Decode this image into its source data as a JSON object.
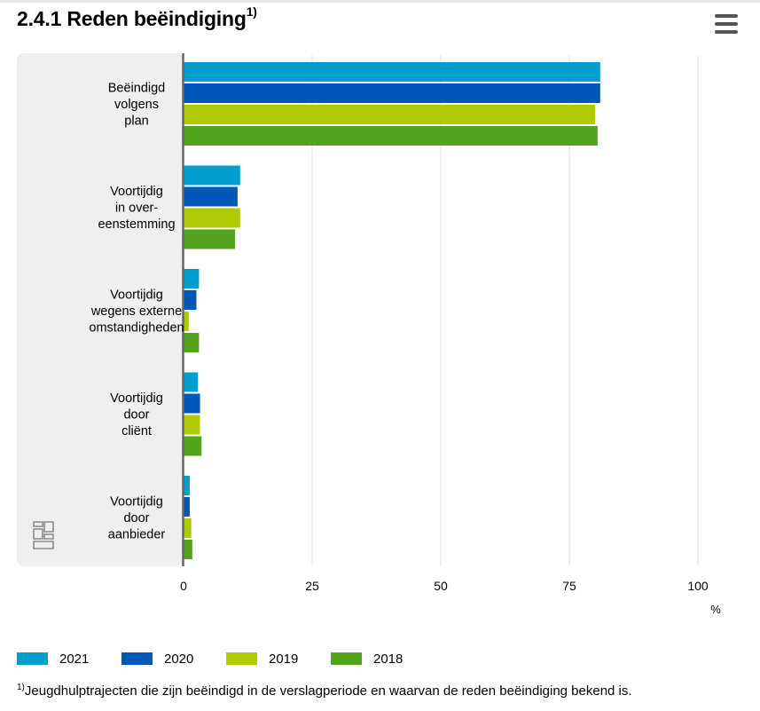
{
  "header": {
    "title": "2.4.1 Reden beëindiging",
    "title_superscript": "1)",
    "menu_icon": "hamburger-menu-icon"
  },
  "footnote": {
    "marker": "1)",
    "text": "Jeugdhulptrajecten die zijn beëindigd in de verslagperiode en waarvan de reden beëindiging bekend is."
  },
  "logo_icon": "cbs-logo-icon",
  "chart_data": {
    "type": "bar",
    "orientation": "horizontal",
    "categories": [
      [
        "Beëindigd",
        "volgens",
        "plan"
      ],
      [
        "Voortijdig",
        "in over-",
        "eenstemming"
      ],
      [
        "Voortijdig",
        "wegens externe",
        "omstandigheden"
      ],
      [
        "Voortijdig",
        "door",
        "cliënt"
      ],
      [
        "Voortijdig",
        "door",
        "aanbieder"
      ]
    ],
    "series": [
      {
        "name": "2021",
        "color": "#009fd0",
        "values": [
          81,
          11,
          3,
          2.8,
          1.2
        ]
      },
      {
        "name": "2020",
        "color": "#0058b8",
        "values": [
          81,
          10.5,
          2.5,
          3.2,
          1.2
        ]
      },
      {
        "name": "2019",
        "color": "#afcb05",
        "values": [
          80,
          11,
          1,
          3.2,
          1.5
        ]
      },
      {
        "name": "2018",
        "color": "#53a31d",
        "values": [
          80.5,
          10,
          3,
          3.5,
          1.7
        ]
      }
    ],
    "xlim": [
      0,
      100
    ],
    "xticks": [
      0,
      25,
      50,
      75,
      100
    ],
    "xlabel": "%",
    "grid": true,
    "legend_position": "bottom"
  }
}
